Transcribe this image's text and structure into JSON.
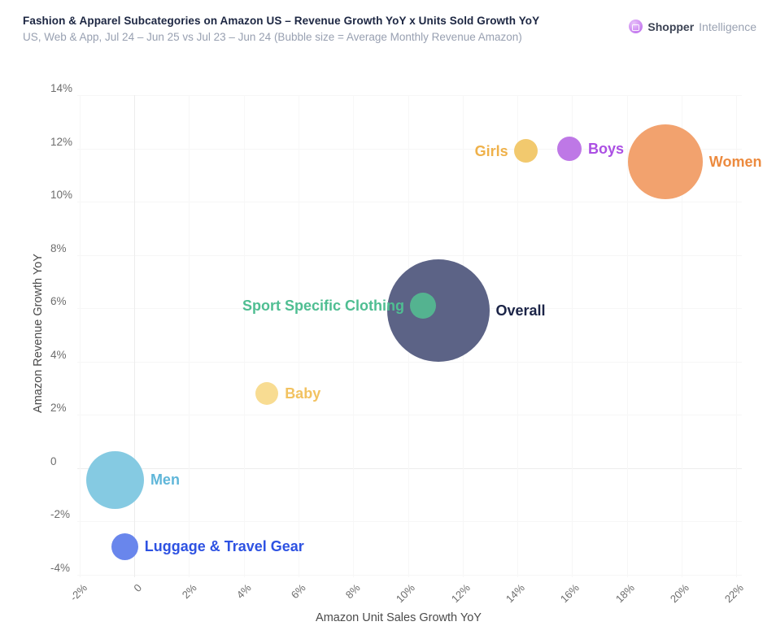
{
  "header": {
    "title": "Fashion & Apparel Subcategories on Amazon US – Revenue Growth YoY x Units Sold Growth YoY",
    "subtitle": "US, Web & App, Jul 24 – Jun 25 vs Jul 23 – Jun 24 (Bubble size = Average Monthly Revenue Amazon)",
    "brand": {
      "name_bold": "Shopper",
      "name_light": "Intelligence",
      "logo_color": "#C07AEA"
    }
  },
  "chart_data": {
    "type": "scatter",
    "title": "Fashion & Apparel Subcategories on Amazon US – Revenue Growth YoY x Units Sold Growth YoY",
    "subtitle": "US, Web & App, Jul 24 – Jun 25 vs Jul 23 – Jun 24 (Bubble size = Average Monthly Revenue Amazon)",
    "xlabel": "Amazon Unit Sales Growth YoY",
    "ylabel": "Amazon Revenue Growth YoY",
    "bubble_size_note": "Bubble size = Average Monthly Revenue Amazon",
    "grid": "on",
    "xlim": [
      -3.5,
      23.5
    ],
    "ylim": [
      -4.5,
      14
    ],
    "x_ticks": [
      {
        "value": -2,
        "label": "-2%"
      },
      {
        "value": 0,
        "label": "0"
      },
      {
        "value": 2,
        "label": "2%"
      },
      {
        "value": 4,
        "label": "4%"
      },
      {
        "value": 6,
        "label": "6%"
      },
      {
        "value": 8,
        "label": "8%"
      },
      {
        "value": 10,
        "label": "10%"
      },
      {
        "value": 12,
        "label": "12%"
      },
      {
        "value": 14,
        "label": "14%"
      },
      {
        "value": 16,
        "label": "16%"
      },
      {
        "value": 18,
        "label": "18%"
      },
      {
        "value": 20,
        "label": "20%"
      },
      {
        "value": 22,
        "label": "22%"
      }
    ],
    "y_ticks": [
      {
        "value": 14,
        "label": "14%"
      },
      {
        "value": 12,
        "label": "12%"
      },
      {
        "value": 10,
        "label": "10%"
      },
      {
        "value": 8,
        "label": "8%"
      },
      {
        "value": 6,
        "label": "6%"
      },
      {
        "value": 4,
        "label": "4%"
      },
      {
        "value": 2,
        "label": "2%"
      },
      {
        "value": 0,
        "label": "0"
      },
      {
        "value": -2,
        "label": "-2%"
      },
      {
        "value": -4,
        "label": "-4%"
      }
    ],
    "points": [
      {
        "label": "Women",
        "x": 19.4,
        "y": 11.5,
        "radius_px": 46,
        "color": "#F2A26E",
        "label_color": "#EC8A3E",
        "label_side": "right"
      },
      {
        "label": "Boys",
        "x": 15.9,
        "y": 12.0,
        "radius_px": 15,
        "color": "#BE78E6",
        "label_color": "#AB4FE3",
        "label_side": "right"
      },
      {
        "label": "Girls",
        "x": 14.3,
        "y": 11.9,
        "radius_px": 14.5,
        "color": "#F2C96E",
        "label_color": "#EFB14A",
        "label_side": "left"
      },
      {
        "label": "Overall",
        "x": 11.1,
        "y": 5.9,
        "radius_px": 63,
        "color": "#5C6386",
        "label_color": "#1B2447",
        "label_side": "right"
      },
      {
        "label": "Sport Specific Clothing",
        "x": 10.55,
        "y": 6.1,
        "radius_px": 16,
        "color": "#54B390",
        "label_color": "#4FBE92",
        "label_side": "left"
      },
      {
        "label": "Baby",
        "x": 4.85,
        "y": 2.8,
        "radius_px": 14,
        "color": "#F8DC92",
        "label_color": "#F2C260",
        "label_side": "right"
      },
      {
        "label": "Men",
        "x": -0.7,
        "y": -0.45,
        "radius_px": 35.5,
        "color": "#85CAE2",
        "label_color": "#5FB6D9",
        "label_side": "right"
      },
      {
        "label": "Luggage & Travel Gear",
        "x": -0.35,
        "y": -2.95,
        "radius_px": 16.5,
        "color": "#6986EC",
        "label_color": "#2E52E2",
        "label_side": "right"
      }
    ]
  }
}
